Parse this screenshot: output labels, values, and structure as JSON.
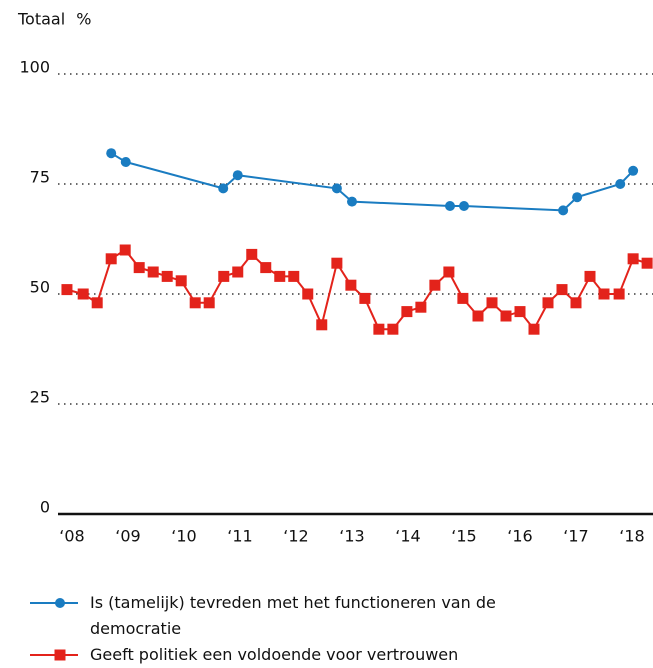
{
  "chart_data": {
    "type": "line",
    "ylabel": "Totaal %",
    "xlim": [
      2007.75,
      2018.375
    ],
    "ylim": [
      0,
      100
    ],
    "yticks": [
      0,
      25,
      50,
      75,
      100
    ],
    "xticks": [
      {
        "value": 2008,
        "label": "‘08"
      },
      {
        "value": 2009,
        "label": "‘09"
      },
      {
        "value": 2010,
        "label": "‘10"
      },
      {
        "value": 2011,
        "label": "‘11"
      },
      {
        "value": 2012,
        "label": "‘12"
      },
      {
        "value": 2013,
        "label": "‘13"
      },
      {
        "value": 2014,
        "label": "‘14"
      },
      {
        "value": 2015,
        "label": "‘15"
      },
      {
        "value": 2016,
        "label": "‘16"
      },
      {
        "value": 2017,
        "label": "‘17"
      },
      {
        "value": 2018,
        "label": "‘18"
      }
    ],
    "grid": true,
    "series": [
      {
        "name": "Is (tamelijk) tevreden met het functioneren van de democratie",
        "color": "#1a7cc1",
        "marker": "circle",
        "x": [
          2008.7,
          2008.96,
          2010.7,
          2010.96,
          2012.73,
          2013.0,
          2014.75,
          2015.0,
          2016.77,
          2017.02,
          2017.79,
          2018.02
        ],
        "values": [
          82,
          80,
          74,
          77,
          74,
          71,
          70,
          70,
          69,
          72,
          75,
          78
        ]
      },
      {
        "name": "Geeft politiek een voldoende voor vertrouwen",
        "color": "#e3231b",
        "marker": "square",
        "x": [
          2007.91,
          2008.2,
          2008.45,
          2008.7,
          2008.95,
          2009.2,
          2009.45,
          2009.7,
          2009.95,
          2010.2,
          2010.45,
          2010.71,
          2010.96,
          2011.21,
          2011.46,
          2011.71,
          2011.96,
          2012.21,
          2012.46,
          2012.73,
          2012.98,
          2013.23,
          2013.48,
          2013.73,
          2013.98,
          2014.23,
          2014.48,
          2014.73,
          2014.98,
          2015.25,
          2015.5,
          2015.75,
          2016.0,
          2016.25,
          2016.5,
          2016.75,
          2017.0,
          2017.25,
          2017.5,
          2017.77,
          2018.02,
          2018.27
        ],
        "values": [
          51,
          50,
          48,
          58,
          60,
          56,
          55,
          54,
          53,
          48,
          48,
          54,
          55,
          59,
          56,
          54,
          54,
          50,
          43,
          57,
          52,
          49,
          42,
          42,
          46,
          47,
          52,
          55,
          49,
          45,
          48,
          45,
          46,
          42,
          48,
          51,
          48,
          54,
          50,
          50,
          58,
          57
        ]
      }
    ]
  }
}
